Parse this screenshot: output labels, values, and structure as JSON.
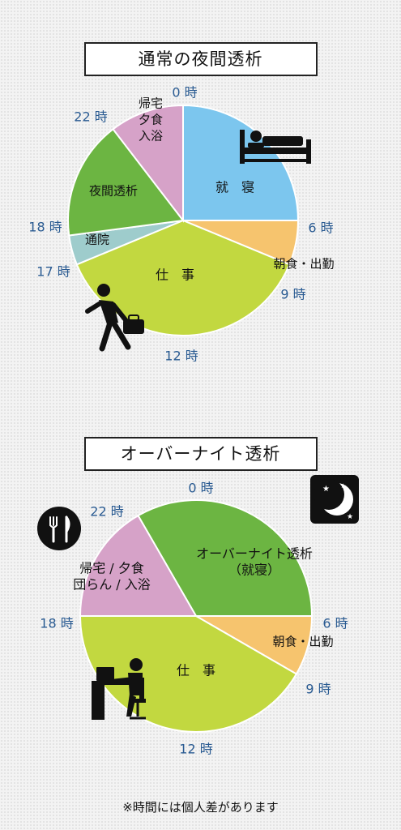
{
  "colors": {
    "sleep": "#7cc6ee",
    "morning": "#f6c46e",
    "work": "#c2d840",
    "commute": "#9ecccc",
    "dialysis": "#6cb542",
    "home": "#d6a2c8",
    "hour_text": "#2a5b92",
    "text": "#111111"
  },
  "note": "※時間には個人差があります",
  "chart_data": [
    {
      "type": "pie",
      "title": "通常の夜間透析",
      "unit": "時",
      "hour_labels": [
        "0 時",
        "6 時",
        "9 時",
        "12 時",
        "17 時",
        "18 時",
        "22 時"
      ],
      "slices": [
        {
          "label": "就　寝",
          "start": 0,
          "end": 6,
          "color": "sleep"
        },
        {
          "label": "朝食・出勤",
          "start": 6,
          "end": 7.5,
          "color": "morning"
        },
        {
          "label": "仕　事",
          "start": 7.5,
          "end": 16.5,
          "color": "work"
        },
        {
          "label": "通院",
          "start": 16.5,
          "end": 17.5,
          "color": "commute"
        },
        {
          "label": "夜間透析",
          "start": 17.5,
          "end": 21.5,
          "color": "dialysis"
        },
        {
          "label": "帰宅\n夕食\n入浴",
          "start": 21.5,
          "end": 24,
          "color": "home"
        }
      ],
      "icons": [
        "bed-icon",
        "businessman-icon"
      ]
    },
    {
      "type": "pie",
      "title": "オーバーナイト透析",
      "unit": "時",
      "hour_labels": [
        "0 時",
        "6 時",
        "9 時",
        "12 時",
        "18 時",
        "22 時"
      ],
      "slices": [
        {
          "label": "オーバーナイト透析\n（就寝）",
          "start": -2,
          "end": 6,
          "color": "dialysis"
        },
        {
          "label": "朝食・出勤",
          "start": 6,
          "end": 8,
          "color": "morning"
        },
        {
          "label": "仕　事",
          "start": 8,
          "end": 18,
          "color": "work"
        },
        {
          "label": "帰宅 / 夕食\n団らん / 入浴",
          "start": 18,
          "end": 22,
          "color": "home"
        }
      ],
      "icons": [
        "moon-icon",
        "fork-knife-icon",
        "desk-worker-icon"
      ]
    }
  ]
}
